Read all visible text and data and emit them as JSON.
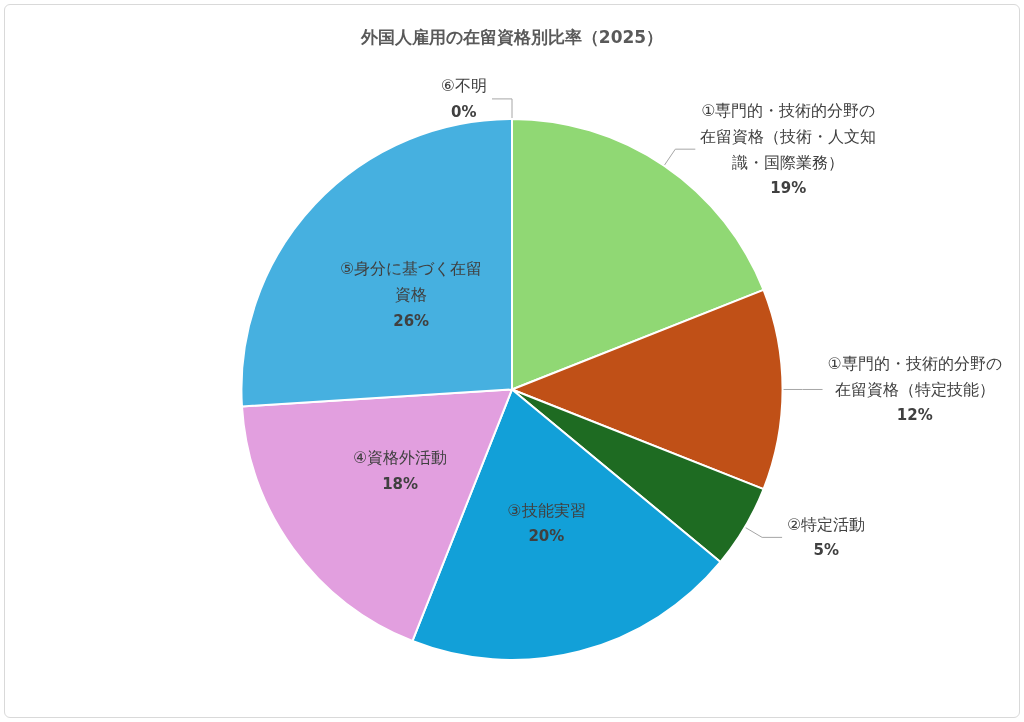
{
  "chart_data": {
    "type": "pie",
    "title": "外国人雇用の在留資格別比率（2025）",
    "categories": [
      "①専門的・技術的分野の在留資格（技術・人文知識・国際業務）",
      "①専門的・技術的分野の在留資格（特定技能）",
      "②特定活動",
      "③技能実習",
      "④資格外活動",
      "⑤身分に基づく在留資格",
      "⑥不明"
    ],
    "values": [
      19,
      12,
      5,
      20,
      18,
      26,
      0
    ],
    "colors": [
      "#90d874",
      "#c05017",
      "#1e6b22",
      "#12a0d8",
      "#e29fdf",
      "#46b0e0",
      "#7f7f7f"
    ],
    "value_labels": [
      "19%",
      "12%",
      "5%",
      "20%",
      "18%",
      "26%",
      "0%"
    ]
  }
}
